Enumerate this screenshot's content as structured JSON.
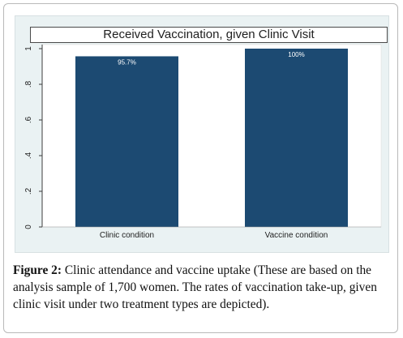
{
  "chart_data": {
    "type": "bar",
    "title": "Received Vaccination, given Clinic Visit",
    "categories": [
      "Clinic condition",
      "Vaccine condition"
    ],
    "values": [
      0.957,
      1.0
    ],
    "data_labels": [
      "95.7%",
      "100%"
    ],
    "xlabel": "",
    "ylabel": "",
    "ylim": [
      0,
      1
    ],
    "yticks": [
      0,
      0.2,
      0.4,
      0.6,
      0.8,
      1
    ],
    "ytick_labels": [
      "0",
      ".2",
      ".4",
      ".6",
      ".8",
      "1"
    ],
    "grid": false,
    "bar_color": "#1c4a72",
    "background_color": "#eaf2f3",
    "plot_color": "#ffffff"
  },
  "caption": {
    "label": "Figure 2:",
    "text": " Clinic attendance and vaccine uptake (These are based on the analysis sample of 1,700 women. The rates of vaccination take-up, given clinic visit under two treatment types are depicted)."
  }
}
